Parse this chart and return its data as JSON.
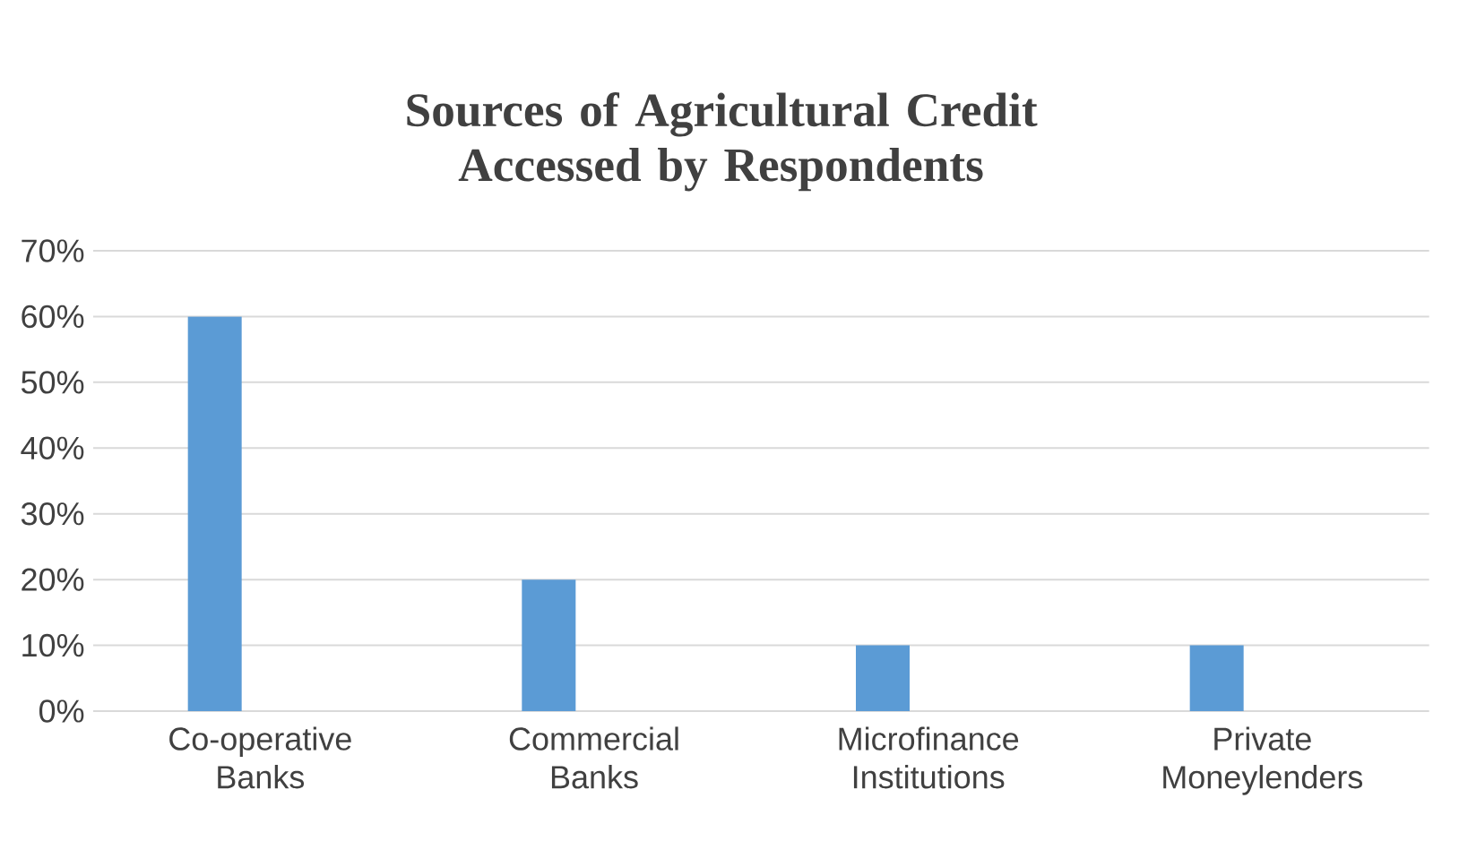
{
  "chart_data": {
    "type": "bar",
    "title": "Sources of Agricultural Credit Accessed by Respondents",
    "categories": [
      "Co-operative Banks",
      "Commercial Banks",
      "Microfinance Institutions",
      "Private Moneylenders"
    ],
    "values": [
      60,
      20,
      10,
      10
    ],
    "color": "#5b9bd5",
    "ylim": [
      0,
      70
    ],
    "yticks": [
      {
        "value": 0,
        "label": "0%"
      },
      {
        "value": 10,
        "label": "10%"
      },
      {
        "value": 20,
        "label": "20%"
      },
      {
        "value": 30,
        "label": "30%"
      },
      {
        "value": 40,
        "label": "40%"
      },
      {
        "value": 50,
        "label": "50%"
      },
      {
        "value": 60,
        "label": "60%"
      },
      {
        "value": 70,
        "label": "70%"
      }
    ],
    "grid": "y"
  }
}
